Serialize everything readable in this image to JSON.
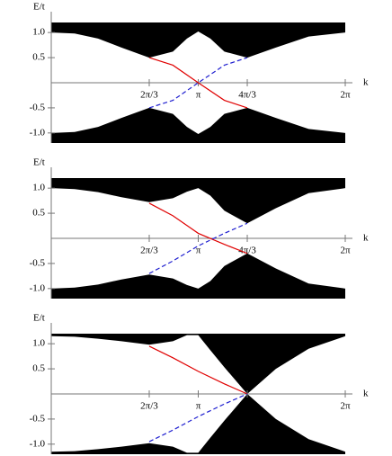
{
  "chart_data": [
    {
      "type": "line",
      "ylabel": "E/t",
      "xlabel": "k",
      "xlim": [
        0,
        6.283
      ],
      "ylim": [
        -1.2,
        1.2
      ],
      "xticks": [
        {
          "value": 2.094,
          "label": "2π/3"
        },
        {
          "value": 3.1416,
          "label": "π"
        },
        {
          "value": 4.189,
          "label": "4π/3"
        },
        {
          "value": 6.283,
          "label": "2π"
        }
      ],
      "yticks": [
        {
          "value": 1.0,
          "label": "1.0"
        },
        0.5,
        -0.5,
        {
          "value": -1.0,
          "label": "-1.0"
        }
      ],
      "series": [
        {
          "color": "#000000",
          "fill": "above",
          "x": [
            0,
            0.5,
            1.0,
            1.5,
            2.094,
            2.6,
            2.9,
            3.1416,
            3.4,
            3.7,
            4.189,
            4.8,
            5.5,
            6.283
          ],
          "values": [
            1.0,
            0.98,
            0.88,
            0.7,
            0.5,
            0.62,
            0.88,
            1.02,
            0.88,
            0.62,
            0.5,
            0.7,
            0.92,
            1.0
          ]
        },
        {
          "color": "#000000",
          "fill": "below",
          "x": [
            0,
            0.5,
            1.0,
            1.5,
            2.094,
            2.6,
            2.9,
            3.1416,
            3.4,
            3.7,
            4.189,
            4.8,
            5.5,
            6.283
          ],
          "values": [
            -1.0,
            -0.98,
            -0.88,
            -0.7,
            -0.5,
            -0.62,
            -0.88,
            -1.02,
            -0.88,
            -0.62,
            -0.5,
            -0.7,
            -0.92,
            -1.0
          ]
        },
        {
          "color": "#e00000",
          "style": "solid",
          "x": [
            2.094,
            2.6,
            3.1416,
            3.7,
            4.189
          ],
          "values": [
            0.5,
            0.35,
            0,
            -0.35,
            -0.5
          ]
        },
        {
          "color": "#2020d0",
          "style": "dashed",
          "x": [
            2.094,
            2.6,
            3.1416,
            3.7,
            4.189
          ],
          "values": [
            -0.5,
            -0.35,
            0,
            0.35,
            0.5
          ]
        }
      ]
    },
    {
      "type": "line",
      "ylabel": "E/t",
      "xlabel": "k",
      "xlim": [
        0,
        6.283
      ],
      "ylim": [
        -1.2,
        1.2
      ],
      "xticks": [
        {
          "value": 2.094,
          "label": "2π/3"
        },
        {
          "value": 3.1416,
          "label": "π"
        },
        {
          "value": 4.189,
          "label": "4π/3"
        },
        {
          "value": 6.283,
          "label": "2π"
        }
      ],
      "yticks": [
        {
          "value": 1.0,
          "label": "1.0"
        },
        0.5,
        -0.5,
        {
          "value": -1.0,
          "label": "-1.0"
        }
      ],
      "series": [
        {
          "color": "#000000",
          "fill": "above",
          "x": [
            0,
            0.5,
            1.0,
            1.5,
            2.094,
            2.6,
            2.9,
            3.1416,
            3.4,
            3.7,
            4.189,
            4.8,
            5.5,
            6.283
          ],
          "values": [
            1.0,
            0.98,
            0.92,
            0.82,
            0.72,
            0.8,
            0.93,
            1.0,
            0.85,
            0.55,
            0.3,
            0.6,
            0.9,
            1.0
          ]
        },
        {
          "color": "#000000",
          "fill": "below",
          "x": [
            0,
            0.5,
            1.0,
            1.5,
            2.094,
            2.6,
            2.9,
            3.1416,
            3.4,
            3.7,
            4.189,
            4.8,
            5.5,
            6.283
          ],
          "values": [
            -1.0,
            -0.98,
            -0.92,
            -0.82,
            -0.72,
            -0.8,
            -0.93,
            -1.0,
            -0.85,
            -0.55,
            -0.3,
            -0.6,
            -0.9,
            -1.0
          ]
        },
        {
          "color": "#e00000",
          "style": "solid",
          "x": [
            2.094,
            2.6,
            3.1416,
            3.7,
            4.189
          ],
          "values": [
            0.7,
            0.45,
            0.1,
            -0.12,
            -0.3
          ]
        },
        {
          "color": "#2020d0",
          "style": "dashed",
          "x": [
            2.094,
            2.6,
            3.1416,
            3.7,
            4.189
          ],
          "values": [
            -0.7,
            -0.45,
            -0.15,
            0.1,
            0.3
          ]
        }
      ]
    },
    {
      "type": "line",
      "ylabel": "E/t",
      "xlabel": "k",
      "xlim": [
        0,
        6.283
      ],
      "ylim": [
        -1.2,
        1.2
      ],
      "xticks": [
        {
          "value": 2.094,
          "label": "2π/3"
        },
        {
          "value": 3.1416,
          "label": "π"
        },
        {
          "value": 4.189,
          "label": "4π/3"
        },
        {
          "value": 6.283,
          "label": "2π"
        }
      ],
      "yticks": [
        {
          "value": 1.0,
          "label": "1.0"
        },
        0.5,
        -0.5,
        {
          "value": -1.0,
          "label": "-1.0"
        }
      ],
      "series": [
        {
          "color": "#000000",
          "fill": "above",
          "x": [
            0,
            0.5,
            1.0,
            1.5,
            2.094,
            2.6,
            2.9,
            3.1416,
            3.4,
            3.7,
            4.189,
            4.8,
            5.5,
            6.283
          ],
          "values": [
            1.15,
            1.14,
            1.1,
            1.05,
            0.98,
            1.05,
            1.17,
            1.17,
            0.87,
            0.53,
            0,
            0.5,
            0.9,
            1.15
          ]
        },
        {
          "color": "#000000",
          "fill": "below",
          "x": [
            0,
            0.5,
            1.0,
            1.5,
            2.094,
            2.6,
            2.9,
            3.1416,
            3.4,
            3.7,
            4.189,
            4.8,
            5.5,
            6.283
          ],
          "values": [
            -1.15,
            -1.14,
            -1.1,
            -1.05,
            -0.98,
            -1.05,
            -1.17,
            -1.17,
            -0.87,
            -0.53,
            0,
            -0.5,
            -0.9,
            -1.15
          ]
        },
        {
          "color": "#e00000",
          "style": "solid",
          "x": [
            2.094,
            2.6,
            3.1416,
            3.7,
            4.189
          ],
          "values": [
            0.95,
            0.72,
            0.45,
            0.2,
            0
          ]
        },
        {
          "color": "#2020d0",
          "style": "dashed",
          "x": [
            2.094,
            2.6,
            3.1416,
            3.7,
            4.189
          ],
          "values": [
            -0.95,
            -0.72,
            -0.45,
            -0.2,
            0
          ]
        }
      ]
    }
  ]
}
